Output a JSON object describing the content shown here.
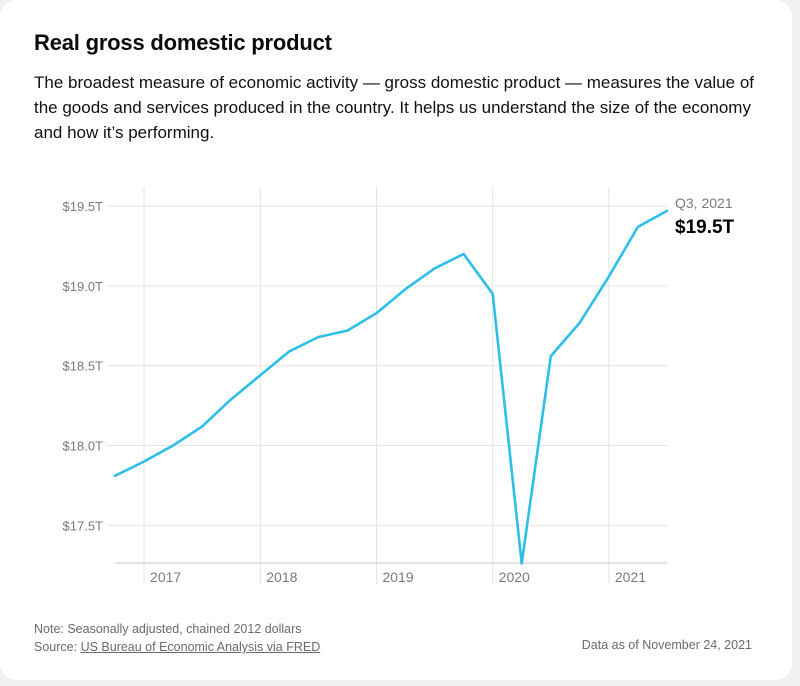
{
  "header": {
    "title": "Real gross domestic product",
    "description": "The broadest measure of economic activity — gross domestic product — measures the value of the goods and services produced in the country. It helps us understand the size of the economy and how it’s performing."
  },
  "chart_data": {
    "type": "line",
    "x": [
      "2016 Q4",
      "2017 Q1",
      "2017 Q2",
      "2017 Q3",
      "2017 Q4",
      "2018 Q1",
      "2018 Q2",
      "2018 Q3",
      "2018 Q4",
      "2019 Q1",
      "2019 Q2",
      "2019 Q3",
      "2019 Q4",
      "2020 Q1",
      "2020 Q2",
      "2020 Q3",
      "2020 Q4",
      "2021 Q1",
      "2021 Q2",
      "2021 Q3"
    ],
    "values": [
      17.81,
      17.9,
      18.0,
      18.12,
      18.29,
      18.44,
      18.59,
      18.68,
      18.72,
      18.83,
      18.98,
      19.11,
      19.2,
      18.95,
      17.26,
      18.56,
      18.77,
      19.06,
      19.37,
      19.47
    ],
    "ylim": [
      17.27,
      19.62
    ],
    "y_ticks": [
      {
        "value": 19.5,
        "label": "$19.5T"
      },
      {
        "value": 19.0,
        "label": "$19.0T"
      },
      {
        "value": 18.5,
        "label": "$18.5T"
      },
      {
        "value": 18.0,
        "label": "$18.0T"
      },
      {
        "value": 17.5,
        "label": "$17.5T"
      }
    ],
    "x_ticks": [
      {
        "at": "2017 Q1",
        "label": "2017"
      },
      {
        "at": "2018 Q1",
        "label": "2018"
      },
      {
        "at": "2019 Q1",
        "label": "2019"
      },
      {
        "at": "2020 Q1",
        "label": "2020"
      },
      {
        "at": "2021 Q1",
        "label": "2021"
      }
    ],
    "end_label": {
      "date": "Q3, 2021",
      "value": "$19.5T"
    },
    "line_color": "#2dbfe8",
    "grid": true
  },
  "footer": {
    "note": "Note: Seasonally adjusted, chained 2012 dollars",
    "source_prefix": "Source: ",
    "source_link": "US Bureau of Economic Analysis via FRED",
    "as_of": "Data as of November 24, 2021"
  }
}
